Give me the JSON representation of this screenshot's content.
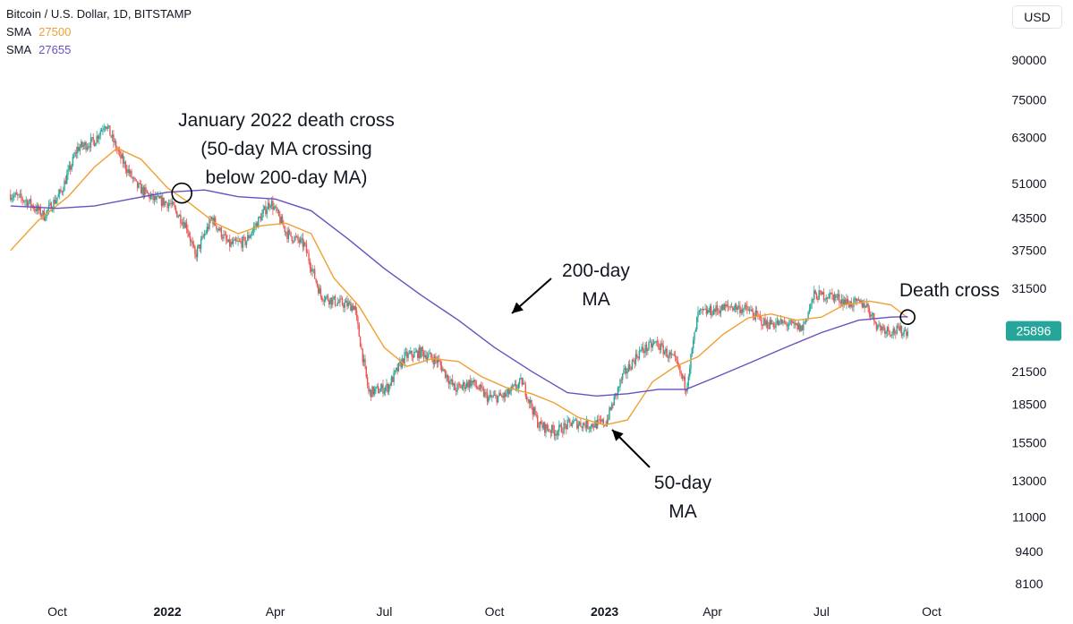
{
  "legend": {
    "title": "Bitcoin / U.S. Dollar, 1D, BITSTAMP",
    "sma1_label": "SMA",
    "sma1_value": "27500",
    "sma2_label": "SMA",
    "sma2_value": "27655"
  },
  "currency": "USD",
  "colors": {
    "up": "#26a69a",
    "down": "#ef5350",
    "sma50": "#f0a030",
    "sma200": "#6b4fbf",
    "badge": "#26a69a"
  },
  "chart_data": {
    "type": "line",
    "title": "Bitcoin / U.S. Dollar, 1D, BITSTAMP",
    "y_scale": "log",
    "ylim": [
      7500,
      110000
    ],
    "y_ticks": [
      "90000",
      "75000",
      "63000",
      "51000",
      "43500",
      "37500",
      "31500",
      "25896",
      "21500",
      "18500",
      "15500",
      "13000",
      "11000",
      "9400",
      "8100"
    ],
    "x_ticks": [
      {
        "label": "Oct",
        "date": "2021-10-01",
        "bold": false
      },
      {
        "label": "2022",
        "date": "2022-01-01",
        "bold": true
      },
      {
        "label": "Apr",
        "date": "2022-04-01",
        "bold": false
      },
      {
        "label": "Jul",
        "date": "2022-07-01",
        "bold": false
      },
      {
        "label": "Oct",
        "date": "2022-10-01",
        "bold": false
      },
      {
        "label": "2023",
        "date": "2023-01-01",
        "bold": true
      },
      {
        "label": "Apr",
        "date": "2023-04-01",
        "bold": false
      },
      {
        "label": "Jul",
        "date": "2023-07-01",
        "bold": false
      },
      {
        "label": "Oct",
        "date": "2023-10-01",
        "bold": false
      }
    ],
    "last_price": "25896",
    "price_series": {
      "x": [
        "2021-08-23",
        "2021-09-06",
        "2021-09-20",
        "2021-10-04",
        "2021-10-18",
        "2021-11-01",
        "2021-11-10",
        "2021-11-22",
        "2021-12-06",
        "2021-12-20",
        "2022-01-03",
        "2022-01-17",
        "2022-01-24",
        "2022-02-07",
        "2022-02-21",
        "2022-03-07",
        "2022-03-28",
        "2022-04-11",
        "2022-04-25",
        "2022-05-09",
        "2022-05-23",
        "2022-06-06",
        "2022-06-18",
        "2022-07-04",
        "2022-07-18",
        "2022-08-01",
        "2022-08-15",
        "2022-08-29",
        "2022-09-12",
        "2022-09-26",
        "2022-10-10",
        "2022-10-24",
        "2022-11-07",
        "2022-11-21",
        "2022-12-05",
        "2022-12-19",
        "2023-01-02",
        "2023-01-16",
        "2023-01-30",
        "2023-02-13",
        "2023-03-01",
        "2023-03-10",
        "2023-03-20",
        "2023-04-03",
        "2023-04-17",
        "2023-05-01",
        "2023-05-15",
        "2023-06-01",
        "2023-06-15",
        "2023-06-25",
        "2023-07-10",
        "2023-07-24",
        "2023-08-07",
        "2023-08-17",
        "2023-08-28",
        "2023-09-11"
      ],
      "values": [
        48500,
        47000,
        44000,
        49000,
        60000,
        62000,
        67500,
        58000,
        50500,
        47500,
        46500,
        42000,
        36500,
        43500,
        38500,
        39000,
        47000,
        40500,
        38500,
        30500,
        29500,
        29000,
        19500,
        20000,
        23000,
        23500,
        22500,
        19800,
        20500,
        19000,
        19200,
        20500,
        16800,
        16300,
        17000,
        16800,
        17000,
        21000,
        23500,
        24500,
        22500,
        20000,
        28000,
        28500,
        29000,
        28500,
        26800,
        26800,
        26200,
        30500,
        30500,
        29400,
        29300,
        26500,
        25900,
        25896
      ]
    },
    "series": [
      {
        "name": "SMA",
        "period": 50,
        "x": [
          "2021-08-23",
          "2021-09-15",
          "2021-10-10",
          "2021-11-01",
          "2021-11-20",
          "2021-12-10",
          "2022-01-01",
          "2022-01-20",
          "2022-02-10",
          "2022-03-01",
          "2022-03-20",
          "2022-04-10",
          "2022-05-01",
          "2022-05-20",
          "2022-06-10",
          "2022-07-01",
          "2022-07-20",
          "2022-08-10",
          "2022-09-01",
          "2022-09-20",
          "2022-10-10",
          "2022-11-01",
          "2022-11-20",
          "2022-12-10",
          "2023-01-01",
          "2023-01-20",
          "2023-02-10",
          "2023-03-01",
          "2023-03-20",
          "2023-04-10",
          "2023-05-01",
          "2023-05-20",
          "2023-06-10",
          "2023-07-01",
          "2023-07-20",
          "2023-08-10",
          "2023-08-28",
          "2023-09-11"
        ],
        "values": [
          37500,
          43000,
          48000,
          55000,
          60000,
          57000,
          50000,
          46500,
          42500,
          40500,
          42000,
          42500,
          40500,
          33000,
          29000,
          24000,
          22000,
          22800,
          22500,
          21000,
          20000,
          19400,
          18600,
          17400,
          16800,
          17200,
          20500,
          22000,
          23000,
          25500,
          27500,
          28000,
          27200,
          27600,
          29200,
          29700,
          29200,
          27500
        ]
      },
      {
        "name": "SMA",
        "period": 200,
        "x": [
          "2021-08-23",
          "2021-10-01",
          "2021-11-01",
          "2021-12-01",
          "2022-01-01",
          "2022-02-01",
          "2022-03-01",
          "2022-04-01",
          "2022-05-01",
          "2022-06-01",
          "2022-07-01",
          "2022-08-01",
          "2022-09-01",
          "2022-10-01",
          "2022-11-01",
          "2022-12-01",
          "2022-12-25",
          "2023-01-20",
          "2023-02-15",
          "2023-03-10",
          "2023-04-01",
          "2023-05-01",
          "2023-06-01",
          "2023-07-01",
          "2023-08-01",
          "2023-08-28",
          "2023-09-11"
        ],
        "values": [
          46000,
          45500,
          46000,
          47500,
          49000,
          49500,
          48000,
          47500,
          45000,
          39500,
          34500,
          30500,
          27200,
          24000,
          21500,
          19500,
          19200,
          19400,
          19800,
          19800,
          20800,
          22300,
          24000,
          25700,
          27200,
          27600,
          27655
        ]
      }
    ],
    "annotations": [
      {
        "lines": [
          "January 2022 death cross",
          "(50-day MA crossing",
          "below 200-day MA)"
        ],
        "date": "2022-01-13",
        "value": 48800
      },
      {
        "lines": [
          "200-day",
          "MA"
        ],
        "date": "2022-10-20",
        "value": 25500
      },
      {
        "lines": [
          "50-day",
          "MA"
        ],
        "date": "2022-12-20",
        "value": 16500
      },
      {
        "lines": [
          "Death cross"
        ],
        "date": "2023-09-11",
        "value": 27600
      }
    ]
  }
}
